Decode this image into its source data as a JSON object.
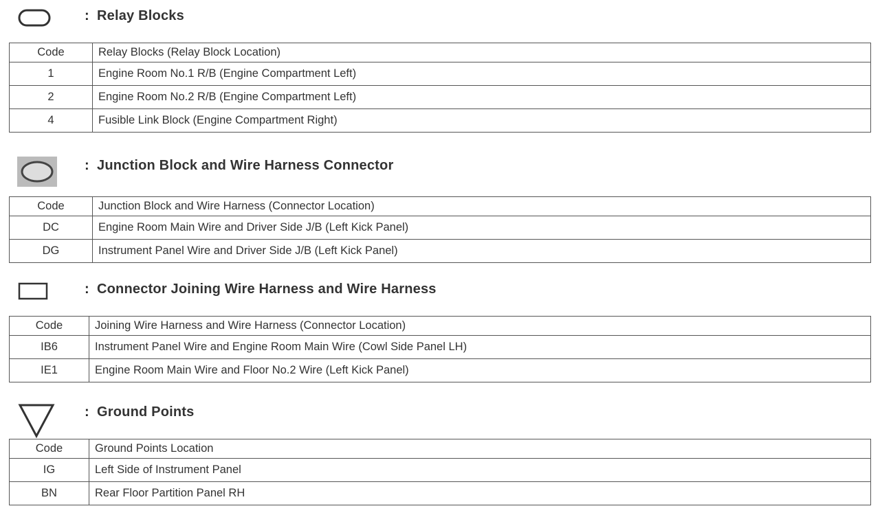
{
  "sections": [
    {
      "icon": "rounded-rectangle-icon",
      "title": "Relay Blocks",
      "header": [
        "Code",
        "Relay Blocks (Relay Block Location)"
      ],
      "rows": [
        [
          "1",
          "Engine Room No.1 R/B (Engine Compartment Left)"
        ],
        [
          "2",
          "Engine Room No.2 R/B (Engine Compartment Left)"
        ],
        [
          "4",
          "Fusible Link Block (Engine Compartment Right)"
        ]
      ]
    },
    {
      "icon": "shaded-oval-icon",
      "title": "Junction Block and Wire Harness Connector",
      "header": [
        "Code",
        "Junction Block and Wire Harness (Connector Location)"
      ],
      "rows": [
        [
          "DC",
          "Engine Room Main Wire and Driver Side J/B (Left Kick Panel)"
        ],
        [
          "DG",
          "Instrument Panel Wire and Driver Side J/B (Left Kick Panel)"
        ]
      ]
    },
    {
      "icon": "rectangle-icon",
      "title": "Connector Joining Wire Harness and Wire Harness",
      "header": [
        "Code",
        "Joining Wire Harness and Wire Harness (Connector Location)"
      ],
      "rows": [
        [
          "IB6",
          "Instrument Panel Wire and Engine Room Main Wire (Cowl Side Panel LH)"
        ],
        [
          "IE1",
          "Engine Room Main Wire and Floor No.2 Wire (Left Kick Panel)"
        ]
      ]
    },
    {
      "icon": "inverted-triangle-icon",
      "title": "Ground Points",
      "header": [
        "Code",
        "Ground Points Location"
      ],
      "rows": [
        [
          "IG",
          "Left Side of Instrument Panel"
        ],
        [
          "BN",
          "Rear Floor Partition Panel RH"
        ]
      ]
    }
  ],
  "colon": ":"
}
